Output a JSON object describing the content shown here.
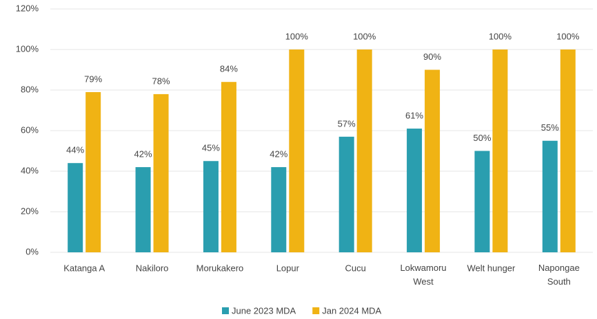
{
  "chart_data": {
    "type": "bar",
    "categories": [
      "Katanga A",
      "Nakiloro",
      "Morukakero",
      "Lopur",
      "Cucu",
      "Lokwamoru West",
      "Welt hunger",
      "Napongae South"
    ],
    "series": [
      {
        "name": "June 2023 MDA",
        "color": "#2a9eaf",
        "values": [
          44,
          42,
          45,
          42,
          57,
          61,
          50,
          55
        ],
        "value_labels": [
          "44%",
          "42%",
          "45%",
          "42%",
          "57%",
          "61%",
          "50%",
          "55%"
        ]
      },
      {
        "name": "Jan 2024 MDA",
        "color": "#f0b314",
        "values": [
          79,
          78,
          84,
          100,
          100,
          90,
          100,
          100
        ],
        "value_labels": [
          "79%",
          "78%",
          "84%",
          "100%",
          "100%",
          "90%",
          "100%",
          "100%"
        ]
      }
    ],
    "ylim": [
      0,
      120
    ],
    "yticks": [
      {
        "value": 0,
        "label": "0%"
      },
      {
        "value": 20,
        "label": "20%"
      },
      {
        "value": 40,
        "label": "40%"
      },
      {
        "value": 60,
        "label": "60%"
      },
      {
        "value": 80,
        "label": "80%"
      },
      {
        "value": 100,
        "label": "100%"
      },
      {
        "value": 120,
        "label": "120%"
      }
    ],
    "grid": true,
    "legend": "bottom"
  }
}
